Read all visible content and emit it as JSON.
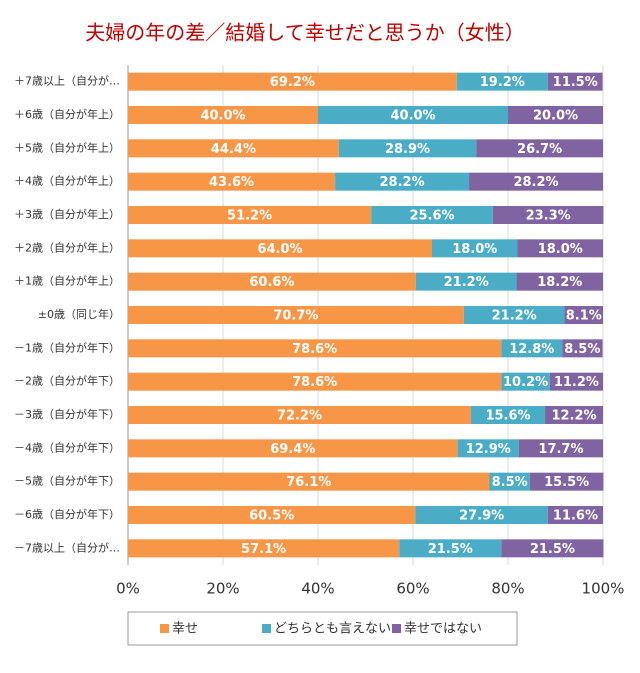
{
  "chart_data": {
    "type": "stacked-bar-horizontal",
    "title": "夫婦の年の差／結婚して幸せだと思うか（女性）",
    "categories": [
      "＋7歳以上（自分が…",
      "＋6歳（自分が年上）",
      "＋5歳（自分が年上）",
      "＋4歳（自分が年上）",
      "＋3歳（自分が年上）",
      "＋2歳（自分が年上）",
      "＋1歳（自分が年上）",
      "±0歳（同じ年）",
      "－1歳（自分が年下）",
      "－2歳（自分が年下）",
      "－3歳（自分が年下）",
      "－4歳（自分が年下）",
      "－5歳（自分が年下）",
      "－6歳（自分が年下）",
      "－7歳以上（自分が…"
    ],
    "series": [
      {
        "name": "幸せ",
        "color": "#f79646",
        "values": [
          69.2,
          40,
          44.4,
          43.6,
          51.2,
          64,
          60.6,
          70.7,
          78.6,
          78.6,
          72.2,
          69.4,
          76.1,
          60.5,
          57.1
        ],
        "value_labels": [
          "69.2%",
          "40.0%",
          "44.4%",
          "43.6%",
          "51.2%",
          "64.0%",
          "60.6%",
          "70.7%",
          "78.6%",
          "78.6%",
          "72.2%",
          "69.4%",
          "76.1%",
          "60.5%",
          "57.1%"
        ]
      },
      {
        "name": "どちらとも言えない",
        "color": "#4bacc6",
        "values": [
          19.2,
          40,
          28.9,
          28.2,
          25.6,
          18,
          21.2,
          21.2,
          12.8,
          10.2,
          15.6,
          12.9,
          8.5,
          27.9,
          21.5
        ],
        "value_labels": [
          "19.2%",
          "40.0%",
          "28.9%",
          "28.2%",
          "25.6%",
          "18.0%",
          "21.2%",
          "21.2%",
          "12.8%",
          "10.2%",
          "15.6%",
          "12.9%",
          "8.5%",
          "27.9%",
          "21.5%"
        ]
      },
      {
        "name": "幸せではない",
        "color": "#8064a2",
        "values": [
          11.5,
          20,
          26.7,
          28.2,
          23.3,
          18,
          18.2,
          8.1,
          8.5,
          11.2,
          12.2,
          17.7,
          15.5,
          11.6,
          21.5
        ],
        "value_labels": [
          "11.5%",
          "20.0%",
          "26.7%",
          "28.2%",
          "23.3%",
          "18.0%",
          "18.2%",
          "8.1%",
          "8.5%",
          "11.2%",
          "12.2%",
          "17.7%",
          "15.5%",
          "11.6%",
          "21.5%"
        ]
      }
    ],
    "xlim": [
      0,
      100
    ],
    "xticks": [
      {
        "value": 0,
        "label": "0%"
      },
      {
        "value": 20,
        "label": "20%"
      },
      {
        "value": 40,
        "label": "40%"
      },
      {
        "value": 60,
        "label": "60%"
      },
      {
        "value": 80,
        "label": "80%"
      },
      {
        "value": 100,
        "label": "100%"
      }
    ],
    "grid": true,
    "legend": "bottom"
  }
}
